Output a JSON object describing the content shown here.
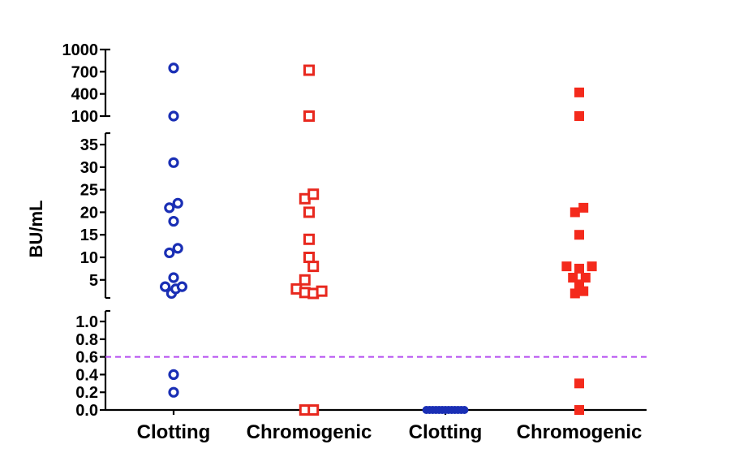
{
  "chart_data": {
    "type": "scatter",
    "title": "",
    "ylabel": "BU/mL",
    "xlabel": "",
    "categories": [
      "Clotting",
      "Chromogenic",
      "Clotting",
      "Chromogenic"
    ],
    "y_scale": "segmented",
    "y_segments": [
      {
        "range": [
          0,
          1.0
        ],
        "ticks": [
          0.0,
          0.2,
          0.4,
          0.6,
          0.8,
          1.0
        ]
      },
      {
        "range": [
          1,
          37
        ],
        "ticks": [
          5,
          10,
          15,
          20,
          25,
          30,
          35
        ]
      },
      {
        "range": [
          100,
          1000
        ],
        "ticks": [
          100,
          400,
          700,
          1000
        ]
      }
    ],
    "tick_labels": [
      "0.0",
      "0.2",
      "0.4",
      "0.6",
      "0.8",
      "1.0",
      "5",
      "10",
      "15",
      "20",
      "25",
      "30",
      "35",
      "100",
      "400",
      "700",
      "1000"
    ],
    "reference_line": {
      "y": 0.6,
      "style": "dashed",
      "color": "#b44bf0"
    },
    "series": [
      {
        "category": "Clotting",
        "marker": "open-circle",
        "color": "#1a2fb5",
        "points": [
          {
            "x": 0.0,
            "y": 750
          },
          {
            "x": 0.0,
            "y": 100
          },
          {
            "x": 0.0,
            "y": 31
          },
          {
            "x": -0.2,
            "y": 21
          },
          {
            "x": 0.2,
            "y": 22
          },
          {
            "x": 0.0,
            "y": 18
          },
          {
            "x": -0.2,
            "y": 11
          },
          {
            "x": 0.2,
            "y": 12
          },
          {
            "x": 0.0,
            "y": 5.5
          },
          {
            "x": -0.4,
            "y": 3.5
          },
          {
            "x": -0.1,
            "y": 2
          },
          {
            "x": 0.1,
            "y": 3
          },
          {
            "x": 0.4,
            "y": 3.5
          },
          {
            "x": 0.0,
            "y": 0.4
          },
          {
            "x": 0.0,
            "y": 0.2
          }
        ]
      },
      {
        "category": "Chromogenic",
        "marker": "open-square",
        "color": "#e8281e",
        "points": [
          {
            "x": 0.0,
            "y": 720
          },
          {
            "x": 0.0,
            "y": 100
          },
          {
            "x": -0.2,
            "y": 23
          },
          {
            "x": 0.2,
            "y": 24
          },
          {
            "x": 0.0,
            "y": 20
          },
          {
            "x": 0.0,
            "y": 14
          },
          {
            "x": 0.0,
            "y": 10
          },
          {
            "x": 0.2,
            "y": 8
          },
          {
            "x": -0.2,
            "y": 5
          },
          {
            "x": -0.6,
            "y": 3
          },
          {
            "x": -0.2,
            "y": 2.2
          },
          {
            "x": 0.2,
            "y": 2
          },
          {
            "x": 0.6,
            "y": 2.5
          },
          {
            "x": -0.2,
            "y": 0.0
          },
          {
            "x": 0.2,
            "y": 0.0
          }
        ]
      },
      {
        "category": "Clotting",
        "marker": "filled-circle",
        "color": "#1a2fb5",
        "points": [
          {
            "x": -0.9,
            "y": 0
          },
          {
            "x": -0.75,
            "y": 0
          },
          {
            "x": -0.6,
            "y": 0
          },
          {
            "x": -0.45,
            "y": 0
          },
          {
            "x": -0.3,
            "y": 0
          },
          {
            "x": -0.15,
            "y": 0
          },
          {
            "x": 0.0,
            "y": 0
          },
          {
            "x": 0.15,
            "y": 0
          },
          {
            "x": 0.3,
            "y": 0
          },
          {
            "x": 0.45,
            "y": 0
          },
          {
            "x": 0.6,
            "y": 0
          },
          {
            "x": 0.75,
            "y": 0
          },
          {
            "x": 0.9,
            "y": 0
          }
        ]
      },
      {
        "category": "Chromogenic",
        "marker": "filled-square",
        "color": "#f42a1c",
        "points": [
          {
            "x": 0.0,
            "y": 420
          },
          {
            "x": 0.0,
            "y": 100
          },
          {
            "x": -0.2,
            "y": 20
          },
          {
            "x": 0.2,
            "y": 21
          },
          {
            "x": 0.0,
            "y": 15
          },
          {
            "x": -0.6,
            "y": 8
          },
          {
            "x": 0.0,
            "y": 7.5
          },
          {
            "x": 0.6,
            "y": 8
          },
          {
            "x": -0.3,
            "y": 5.5
          },
          {
            "x": 0.3,
            "y": 5.5
          },
          {
            "x": 0.0,
            "y": 4
          },
          {
            "x": -0.2,
            "y": 2
          },
          {
            "x": 0.2,
            "y": 2.5
          },
          {
            "x": 0.0,
            "y": 0.3
          },
          {
            "x": 0.0,
            "y": 0.0
          }
        ]
      }
    ]
  }
}
